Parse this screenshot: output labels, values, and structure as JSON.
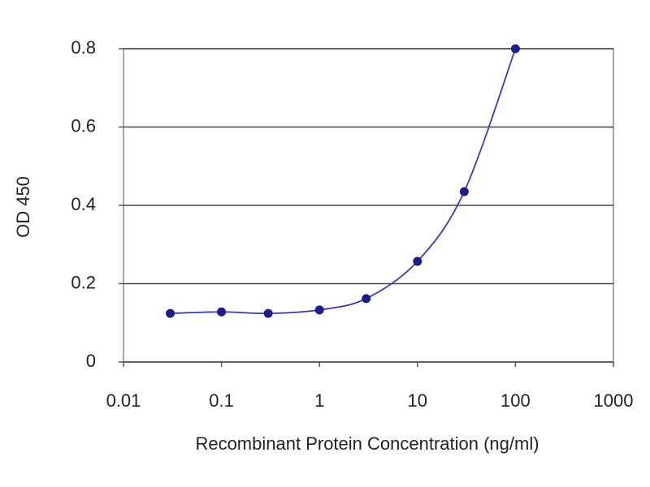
{
  "chart_data": {
    "type": "line",
    "x_label": "Recombinant Protein Concentration (ng/ml)",
    "y_label": "OD 450",
    "x": [
      0.03,
      0.1,
      0.3,
      1,
      3,
      10,
      30,
      100
    ],
    "values": [
      0.124,
      0.128,
      0.124,
      0.133,
      0.162,
      0.257,
      0.435,
      0.8
    ],
    "color": "#1c1c8a",
    "log_x": true,
    "xlim": [
      0.01,
      1000
    ],
    "xticks": [
      0.01,
      0.1,
      1,
      10,
      100,
      1000
    ],
    "ylim": [
      0,
      0.8
    ],
    "yticks": [
      0,
      0.2,
      0.4,
      0.6,
      0.8
    ],
    "grid": true
  }
}
